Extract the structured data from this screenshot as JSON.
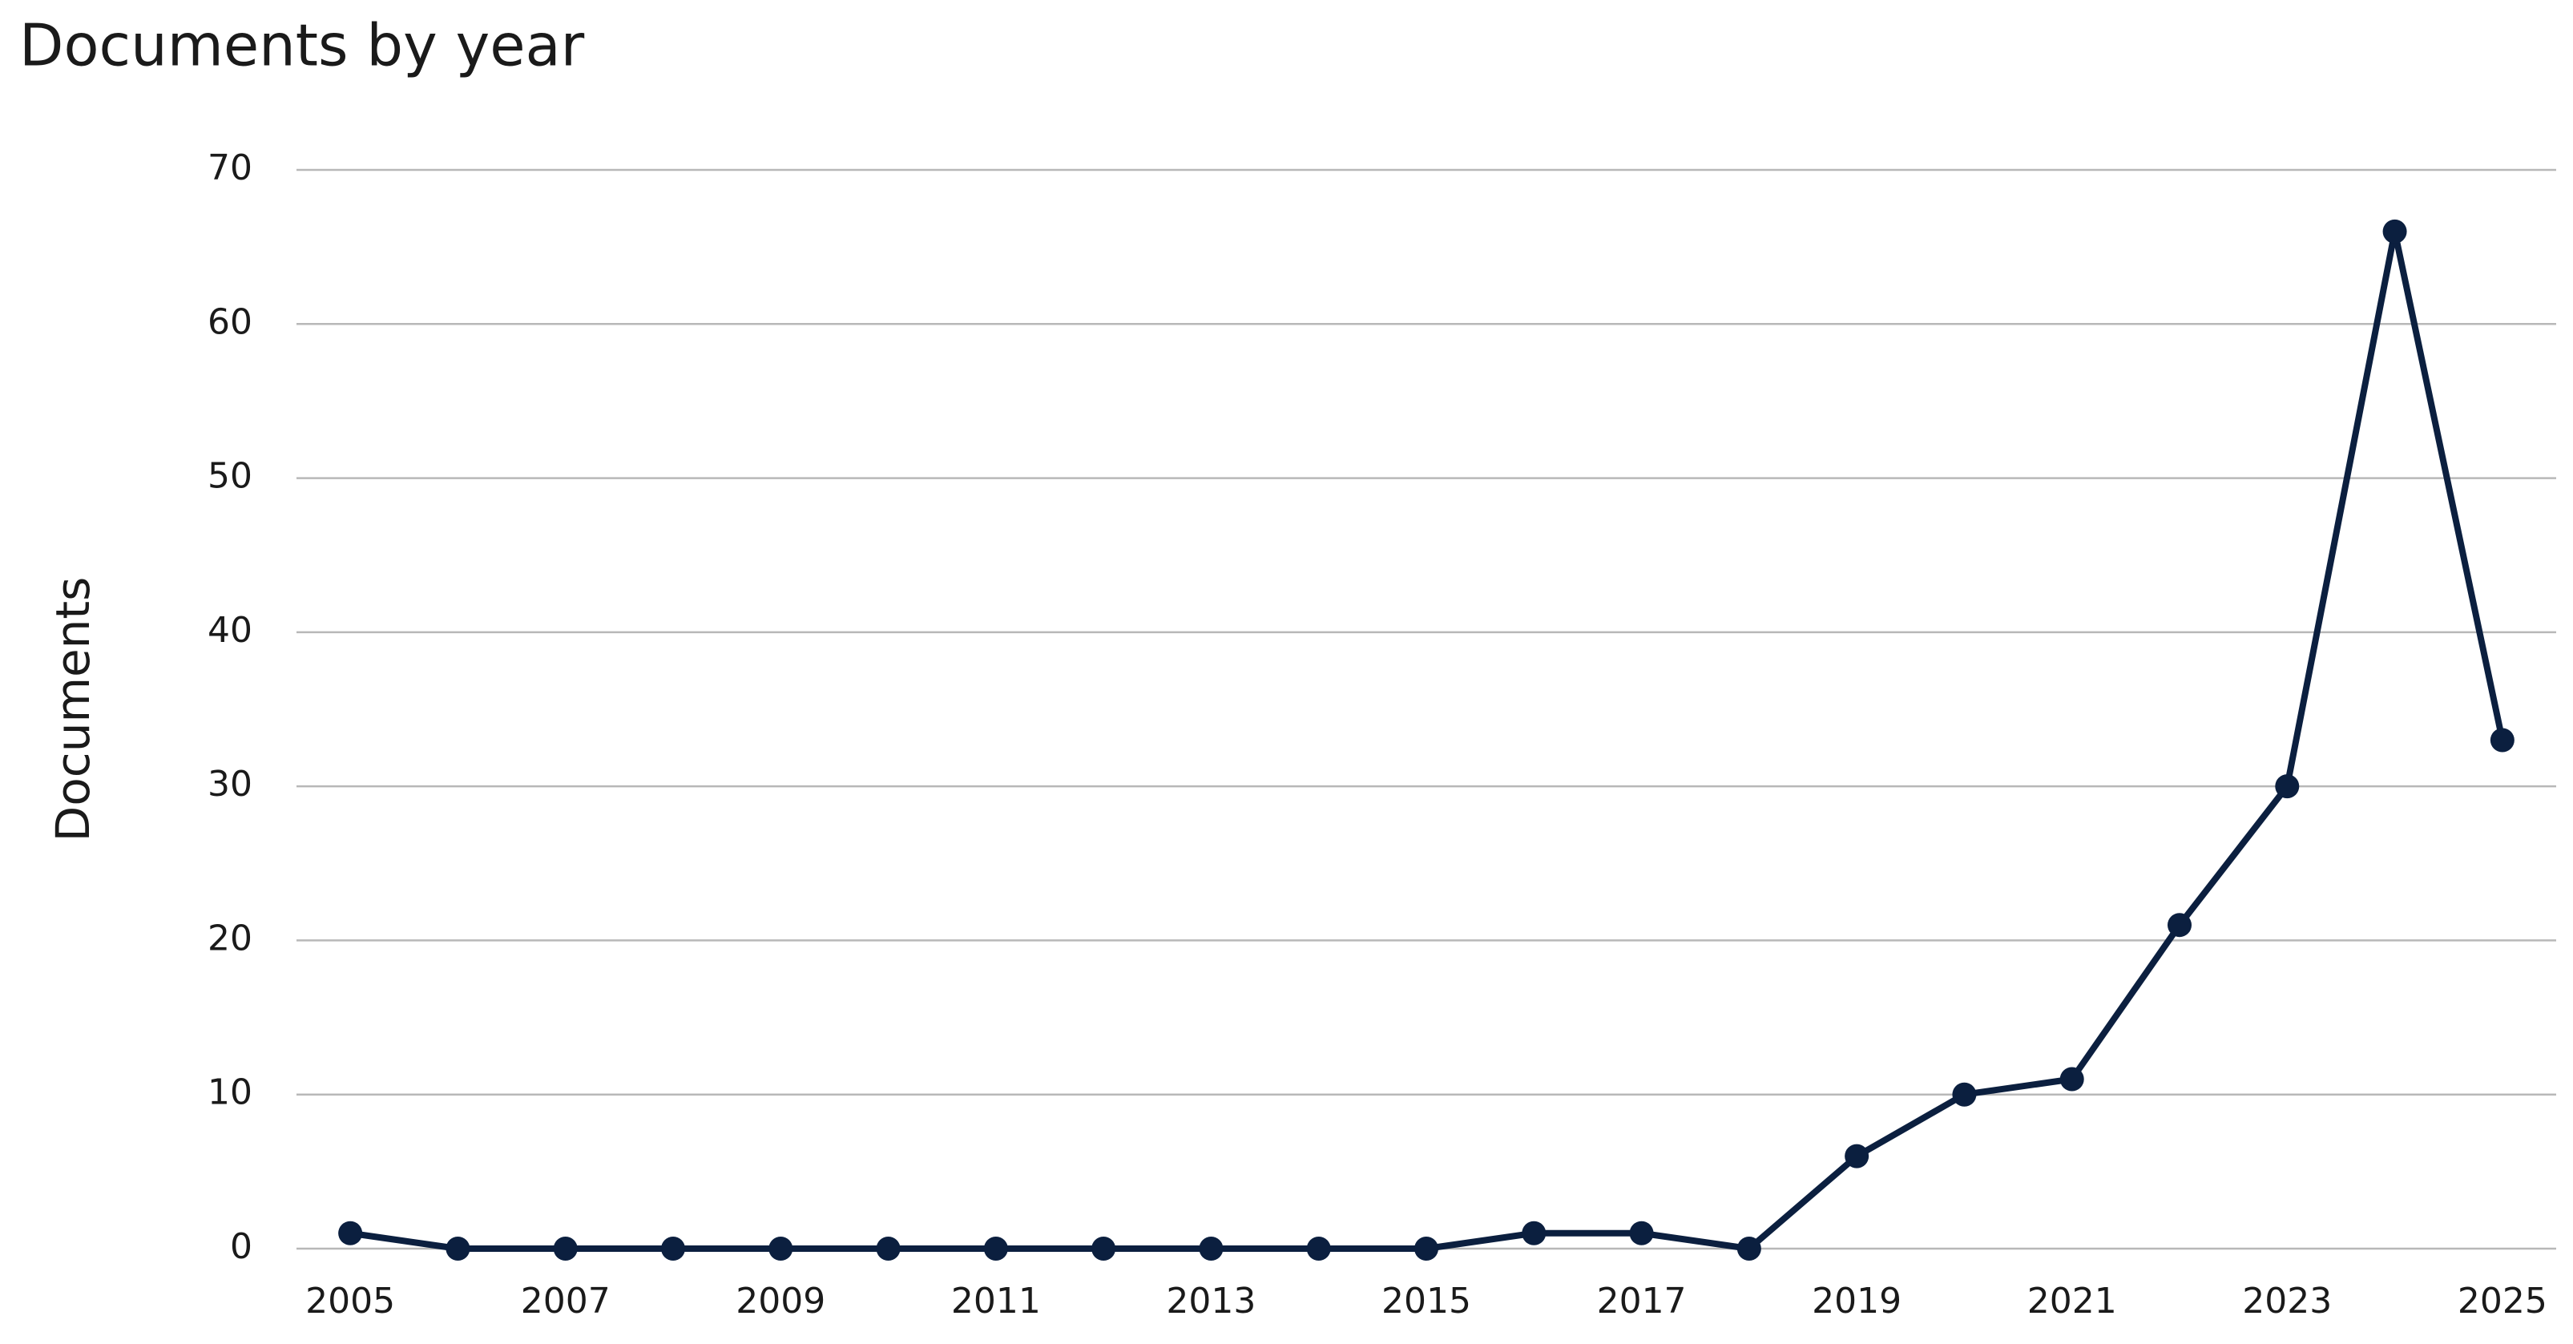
{
  "chart_data": {
    "type": "line",
    "title": "Documents by year",
    "y_label": "Documents",
    "x": [
      2005,
      2006,
      2007,
      2008,
      2009,
      2010,
      2011,
      2012,
      2013,
      2014,
      2015,
      2016,
      2017,
      2018,
      2019,
      2020,
      2021,
      2022,
      2023,
      2024,
      2025
    ],
    "series": [
      {
        "name": "Documents",
        "color": "#0b1f3f",
        "values": [
          1,
          0,
          0,
          0,
          0,
          0,
          0,
          0,
          0,
          0,
          0,
          1,
          1,
          0,
          6,
          10,
          11,
          21,
          30,
          66,
          33
        ]
      }
    ],
    "xlim": [
      2004.5,
      2025.5
    ],
    "xticks": [
      2005,
      2007,
      2009,
      2011,
      2013,
      2015,
      2017,
      2019,
      2021,
      2023,
      2025
    ],
    "ylim": [
      0,
      70
    ],
    "yticks": [
      0,
      10,
      20,
      30,
      40,
      50,
      60,
      70
    ],
    "grid": true
  }
}
